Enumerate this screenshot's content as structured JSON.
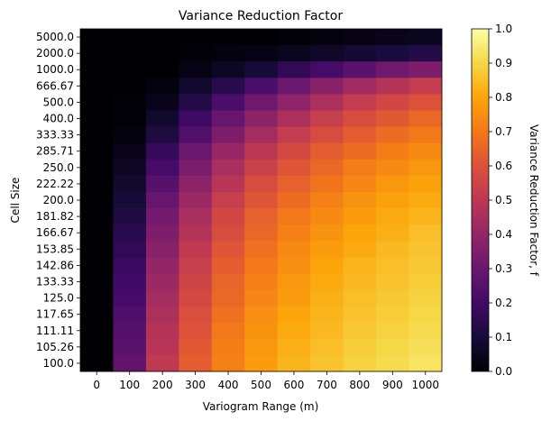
{
  "chart_data": {
    "type": "heatmap",
    "title": "Variance Reduction Factor",
    "xlabel": "Variogram Range (m)",
    "ylabel": "Cell Size",
    "colorbar_label": "Variance Reduction Factor, f",
    "colorbar_ticks": [
      "0.0",
      "0.1",
      "0.2",
      "0.3",
      "0.4",
      "0.5",
      "0.6",
      "0.7",
      "0.8",
      "0.9",
      "1.0"
    ],
    "colormap": "inferno",
    "vmin": 0,
    "vmax": 1,
    "x": [
      "0",
      "100",
      "200",
      "300",
      "400",
      "500",
      "600",
      "700",
      "800",
      "900",
      "1000"
    ],
    "y": [
      "5000.0",
      "2000.0",
      "1000.0",
      "666.67",
      "500.0",
      "400.0",
      "333.33",
      "285.71",
      "250.0",
      "222.22",
      "200.0",
      "181.82",
      "166.67",
      "153.85",
      "142.86",
      "133.33",
      "125.0",
      "117.65",
      "111.11",
      "105.26",
      "100.0"
    ],
    "values": [
      [
        0.0,
        0.0,
        0.0,
        0.0,
        0.0,
        0.0,
        0.01,
        0.02,
        0.03,
        0.04,
        0.05
      ],
      [
        0.0,
        0.0,
        0.0,
        0.01,
        0.02,
        0.03,
        0.05,
        0.07,
        0.09,
        0.11,
        0.13
      ],
      [
        0.0,
        0.0,
        0.0,
        0.03,
        0.06,
        0.1,
        0.16,
        0.21,
        0.26,
        0.31,
        0.35
      ],
      [
        0.0,
        0.0,
        0.02,
        0.08,
        0.14,
        0.22,
        0.3,
        0.37,
        0.43,
        0.48,
        0.52
      ],
      [
        0.0,
        0.01,
        0.04,
        0.13,
        0.22,
        0.31,
        0.39,
        0.46,
        0.52,
        0.56,
        0.6
      ],
      [
        0.0,
        0.01,
        0.08,
        0.19,
        0.29,
        0.38,
        0.46,
        0.53,
        0.58,
        0.62,
        0.66
      ],
      [
        0.0,
        0.02,
        0.12,
        0.24,
        0.35,
        0.44,
        0.52,
        0.58,
        0.63,
        0.67,
        0.7
      ],
      [
        0.0,
        0.04,
        0.17,
        0.3,
        0.41,
        0.5,
        0.57,
        0.63,
        0.67,
        0.71,
        0.74
      ],
      [
        0.0,
        0.06,
        0.21,
        0.34,
        0.45,
        0.54,
        0.61,
        0.66,
        0.71,
        0.74,
        0.77
      ],
      [
        0.0,
        0.08,
        0.25,
        0.38,
        0.49,
        0.58,
        0.64,
        0.69,
        0.73,
        0.77,
        0.79
      ],
      [
        0.0,
        0.1,
        0.29,
        0.42,
        0.53,
        0.61,
        0.67,
        0.72,
        0.76,
        0.79,
        0.81
      ],
      [
        0.0,
        0.12,
        0.32,
        0.45,
        0.56,
        0.64,
        0.7,
        0.74,
        0.78,
        0.81,
        0.83
      ],
      [
        0.0,
        0.14,
        0.35,
        0.48,
        0.58,
        0.66,
        0.72,
        0.76,
        0.8,
        0.82,
        0.85
      ],
      [
        0.0,
        0.16,
        0.37,
        0.51,
        0.61,
        0.68,
        0.74,
        0.78,
        0.81,
        0.84,
        0.86
      ],
      [
        0.0,
        0.18,
        0.4,
        0.53,
        0.63,
        0.7,
        0.75,
        0.8,
        0.83,
        0.85,
        0.87
      ],
      [
        0.0,
        0.2,
        0.42,
        0.55,
        0.65,
        0.72,
        0.77,
        0.81,
        0.84,
        0.86,
        0.88
      ],
      [
        0.0,
        0.21,
        0.44,
        0.57,
        0.66,
        0.73,
        0.78,
        0.82,
        0.85,
        0.87,
        0.89
      ],
      [
        0.0,
        0.23,
        0.46,
        0.59,
        0.68,
        0.75,
        0.8,
        0.83,
        0.86,
        0.88,
        0.9
      ],
      [
        0.0,
        0.25,
        0.48,
        0.6,
        0.7,
        0.76,
        0.81,
        0.84,
        0.87,
        0.89,
        0.91
      ],
      [
        0.0,
        0.26,
        0.49,
        0.62,
        0.71,
        0.77,
        0.82,
        0.85,
        0.88,
        0.9,
        0.92
      ],
      [
        0.0,
        0.28,
        0.51,
        0.63,
        0.72,
        0.78,
        0.83,
        0.86,
        0.89,
        0.91,
        0.93
      ]
    ]
  }
}
